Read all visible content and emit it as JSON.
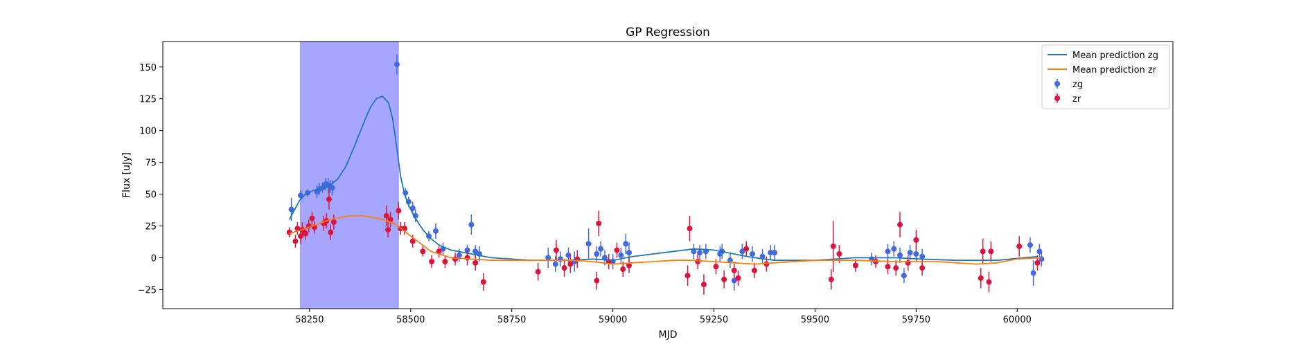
{
  "chart_data": {
    "type": "scatter",
    "title": "GP Regression",
    "xlabel": "MJD",
    "ylabel": "Flux [uJy]",
    "xlim": [
      57887,
      60385
    ],
    "ylim": [
      -40,
      170
    ],
    "xticks": [
      58250,
      58500,
      58750,
      59000,
      59250,
      59500,
      59750,
      60000
    ],
    "yticks": [
      -25,
      0,
      25,
      50,
      75,
      100,
      125,
      150
    ],
    "legend_position": "top-right",
    "grid": false,
    "highlight_span": {
      "x0": 58226,
      "x1": 58471,
      "color": "#a6a6ff"
    },
    "series": [
      {
        "name": "Mean prediction zg",
        "kind": "line",
        "color": "#1f77b4",
        "points": [
          [
            58200,
            30
          ],
          [
            58225,
            45
          ],
          [
            58240,
            50
          ],
          [
            58260,
            53
          ],
          [
            58280,
            54
          ],
          [
            58300,
            57
          ],
          [
            58320,
            62
          ],
          [
            58340,
            72
          ],
          [
            58360,
            87
          ],
          [
            58380,
            103
          ],
          [
            58400,
            118
          ],
          [
            58415,
            125
          ],
          [
            58430,
            127
          ],
          [
            58445,
            122
          ],
          [
            58455,
            110
          ],
          [
            58465,
            88
          ],
          [
            58475,
            64
          ],
          [
            58485,
            50
          ],
          [
            58495,
            41
          ],
          [
            58510,
            32
          ],
          [
            58530,
            22
          ],
          [
            58550,
            15
          ],
          [
            58570,
            10
          ],
          [
            58600,
            6
          ],
          [
            58650,
            3
          ],
          [
            58700,
            0
          ],
          [
            58800,
            -2
          ],
          [
            58900,
            -2
          ],
          [
            58950,
            -1
          ],
          [
            59000,
            -2
          ],
          [
            59050,
            1
          ],
          [
            59100,
            3
          ],
          [
            59150,
            5
          ],
          [
            59200,
            7
          ],
          [
            59250,
            6
          ],
          [
            59300,
            3
          ],
          [
            59350,
            0
          ],
          [
            59400,
            -2
          ],
          [
            59450,
            -2
          ],
          [
            59500,
            -2
          ],
          [
            59600,
            0
          ],
          [
            59700,
            0
          ],
          [
            59760,
            -1
          ],
          [
            59850,
            -2
          ],
          [
            59950,
            -2
          ],
          [
            60050,
            1
          ]
        ]
      },
      {
        "name": "Mean prediction zr",
        "kind": "line",
        "color": "#ff7f0e",
        "points": [
          [
            58200,
            19
          ],
          [
            58250,
            24
          ],
          [
            58300,
            30
          ],
          [
            58350,
            33
          ],
          [
            58380,
            33
          ],
          [
            58420,
            31
          ],
          [
            58460,
            27
          ],
          [
            58500,
            17
          ],
          [
            58550,
            5
          ],
          [
            58600,
            0
          ],
          [
            58650,
            -1
          ],
          [
            58700,
            -2
          ],
          [
            58800,
            -2
          ],
          [
            58900,
            -2
          ],
          [
            58950,
            -3
          ],
          [
            59000,
            -5
          ],
          [
            59050,
            -4
          ],
          [
            59100,
            -3
          ],
          [
            59150,
            -2
          ],
          [
            59200,
            -2
          ],
          [
            59250,
            -3
          ],
          [
            59300,
            -4
          ],
          [
            59350,
            -5
          ],
          [
            59400,
            -4
          ],
          [
            59450,
            -3
          ],
          [
            59500,
            -2
          ],
          [
            59600,
            -2
          ],
          [
            59700,
            -3
          ],
          [
            59800,
            -3
          ],
          [
            59850,
            -4
          ],
          [
            59900,
            -5
          ],
          [
            59950,
            -4
          ],
          [
            60000,
            -1
          ],
          [
            60060,
            0
          ]
        ]
      },
      {
        "name": "zg",
        "kind": "errorbar",
        "color": "#4169e1",
        "points": [
          [
            58205,
            38,
            9
          ],
          [
            58228,
            49,
            4
          ],
          [
            58245,
            51,
            3
          ],
          [
            58268,
            52,
            5
          ],
          [
            58274,
            54,
            5
          ],
          [
            58282,
            55,
            4
          ],
          [
            58290,
            58,
            5
          ],
          [
            58296,
            57,
            6
          ],
          [
            58302,
            56,
            5
          ],
          [
            58306,
            55,
            6
          ],
          [
            58466,
            152,
            8
          ],
          [
            58487,
            51,
            4
          ],
          [
            58495,
            44,
            4
          ],
          [
            58505,
            39,
            5
          ],
          [
            58512,
            33,
            5
          ],
          [
            58545,
            17,
            4
          ],
          [
            58562,
            21,
            6
          ],
          [
            58580,
            7,
            5
          ],
          [
            58620,
            2,
            5
          ],
          [
            58640,
            6,
            4
          ],
          [
            58650,
            26,
            8
          ],
          [
            58660,
            5,
            5
          ],
          [
            58670,
            3,
            6
          ],
          [
            58840,
            0,
            8
          ],
          [
            58858,
            -5,
            6
          ],
          [
            58870,
            -1,
            6
          ],
          [
            58890,
            2,
            6
          ],
          [
            58905,
            -3,
            8
          ],
          [
            58940,
            11,
            12
          ],
          [
            58960,
            3,
            6
          ],
          [
            58970,
            7,
            6
          ],
          [
            58980,
            0,
            6
          ],
          [
            59000,
            -3,
            6
          ],
          [
            59020,
            2,
            6
          ],
          [
            59032,
            11,
            8
          ],
          [
            59040,
            4,
            8
          ],
          [
            59200,
            5,
            6
          ],
          [
            59215,
            4,
            6
          ],
          [
            59230,
            5,
            6
          ],
          [
            59265,
            3,
            6
          ],
          [
            59270,
            5,
            6
          ],
          [
            59290,
            -2,
            6
          ],
          [
            59300,
            -18,
            8
          ],
          [
            59320,
            5,
            6
          ],
          [
            59345,
            3,
            6
          ],
          [
            59370,
            1,
            6
          ],
          [
            59390,
            4,
            6
          ],
          [
            59400,
            4,
            6
          ],
          [
            59640,
            -1,
            5
          ],
          [
            59680,
            5,
            6
          ],
          [
            59695,
            7,
            6
          ],
          [
            59710,
            2,
            6
          ],
          [
            59720,
            -14,
            6
          ],
          [
            59735,
            4,
            6
          ],
          [
            59750,
            3,
            6
          ],
          [
            59765,
            1,
            6
          ],
          [
            60032,
            10,
            6
          ],
          [
            60040,
            -12,
            10
          ],
          [
            60055,
            5,
            6
          ],
          [
            60060,
            -1,
            6
          ]
        ]
      },
      {
        "name": "zr",
        "kind": "errorbar",
        "color": "#dc143c",
        "points": [
          [
            58200,
            20,
            4
          ],
          [
            58215,
            13,
            5
          ],
          [
            58220,
            23,
            5
          ],
          [
            58228,
            17,
            6
          ],
          [
            58232,
            22,
            6
          ],
          [
            58240,
            19,
            5
          ],
          [
            58248,
            25,
            5
          ],
          [
            58256,
            31,
            5
          ],
          [
            58262,
            24,
            5
          ],
          [
            58285,
            27,
            6
          ],
          [
            58292,
            29,
            6
          ],
          [
            58298,
            46,
            8
          ],
          [
            58302,
            20,
            6
          ],
          [
            58310,
            28,
            6
          ],
          [
            58440,
            33,
            8
          ],
          [
            58444,
            22,
            6
          ],
          [
            58450,
            30,
            6
          ],
          [
            58470,
            37,
            7
          ],
          [
            58475,
            23,
            5
          ],
          [
            58485,
            23,
            5
          ],
          [
            58505,
            13,
            5
          ],
          [
            58530,
            5,
            4
          ],
          [
            58552,
            -3,
            5
          ],
          [
            58570,
            5,
            5
          ],
          [
            58585,
            -3,
            5
          ],
          [
            58610,
            -1,
            5
          ],
          [
            58640,
            0,
            6
          ],
          [
            58660,
            -4,
            6
          ],
          [
            58680,
            -19,
            7
          ],
          [
            58815,
            -11,
            7
          ],
          [
            58860,
            6,
            8
          ],
          [
            58880,
            -8,
            7
          ],
          [
            58895,
            -5,
            7
          ],
          [
            58912,
            -1,
            7
          ],
          [
            58960,
            -18,
            7
          ],
          [
            58965,
            27,
            10
          ],
          [
            58990,
            -3,
            6
          ],
          [
            59010,
            6,
            6
          ],
          [
            59025,
            -9,
            6
          ],
          [
            59040,
            -6,
            6
          ],
          [
            59185,
            -14,
            8
          ],
          [
            59190,
            23,
            10
          ],
          [
            59210,
            -3,
            6
          ],
          [
            59225,
            -21,
            8
          ],
          [
            59255,
            -7,
            6
          ],
          [
            59275,
            -17,
            7
          ],
          [
            59300,
            -10,
            6
          ],
          [
            59310,
            -16,
            6
          ],
          [
            59330,
            7,
            6
          ],
          [
            59350,
            -10,
            6
          ],
          [
            59380,
            -5,
            6
          ],
          [
            59540,
            -17,
            8
          ],
          [
            59545,
            9,
            20
          ],
          [
            59560,
            3,
            7
          ],
          [
            59600,
            -6,
            5
          ],
          [
            59650,
            -3,
            5
          ],
          [
            59680,
            -7,
            6
          ],
          [
            59700,
            -8,
            6
          ],
          [
            59710,
            26,
            10
          ],
          [
            59730,
            -4,
            6
          ],
          [
            59750,
            14,
            8
          ],
          [
            59765,
            -8,
            6
          ],
          [
            59910,
            -16,
            8
          ],
          [
            59915,
            5,
            10
          ],
          [
            59930,
            -19,
            8
          ],
          [
            59935,
            5,
            8
          ],
          [
            60005,
            9,
            8
          ],
          [
            60050,
            -4,
            6
          ]
        ]
      }
    ]
  }
}
